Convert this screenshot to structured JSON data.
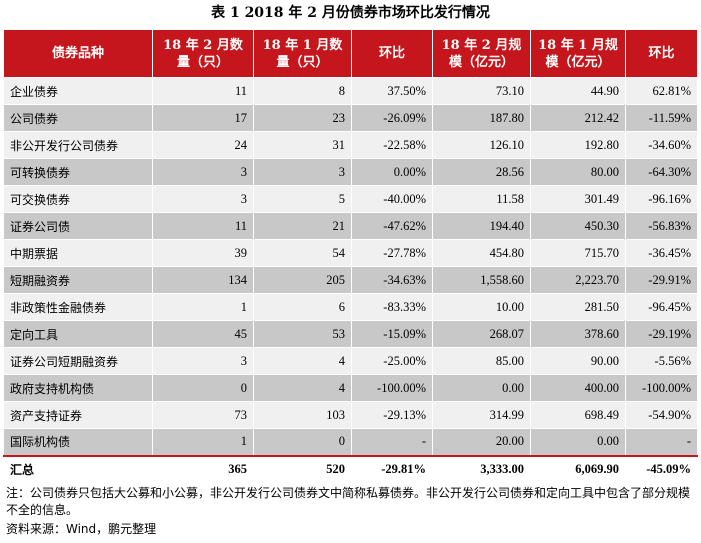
{
  "title": "表 1   2018 年 2 月份债券市场环比发行情况",
  "headers": [
    "债券品种",
    "18 年 2 月数量（只）",
    "18 年 1 月数量（只）",
    "环比",
    "18 年 2 月规模（亿元）",
    "18 年 1 月规模（亿元）",
    "环比"
  ],
  "rows": [
    [
      "企业债券",
      "11",
      "8",
      "37.50%",
      "73.10",
      "44.90",
      "62.81%"
    ],
    [
      "公司债券",
      "17",
      "23",
      "-26.09%",
      "187.80",
      "212.42",
      "-11.59%"
    ],
    [
      "非公开发行公司债券",
      "24",
      "31",
      "-22.58%",
      "126.10",
      "192.80",
      "-34.60%"
    ],
    [
      "可转换债券",
      "3",
      "3",
      "0.00%",
      "28.56",
      "80.00",
      "-64.30%"
    ],
    [
      "可交换债券",
      "3",
      "5",
      "-40.00%",
      "11.58",
      "301.49",
      "-96.16%"
    ],
    [
      "证券公司债",
      "11",
      "21",
      "-47.62%",
      "194.40",
      "450.30",
      "-56.83%"
    ],
    [
      "中期票据",
      "39",
      "54",
      "-27.78%",
      "454.80",
      "715.70",
      "-36.45%"
    ],
    [
      "短期融资券",
      "134",
      "205",
      "-34.63%",
      "1,558.60",
      "2,223.70",
      "-29.91%"
    ],
    [
      "非政策性金融债券",
      "1",
      "6",
      "-83.33%",
      "10.00",
      "281.50",
      "-96.45%"
    ],
    [
      "定向工具",
      "45",
      "53",
      "-15.09%",
      "268.07",
      "378.60",
      "-29.19%"
    ],
    [
      "证券公司短期融资券",
      "3",
      "4",
      "-25.00%",
      "85.00",
      "90.00",
      "-5.56%"
    ],
    [
      "政府支持机构债",
      "0",
      "4",
      "-100.00%",
      "0.00",
      "400.00",
      "-100.00%"
    ],
    [
      "资产支持证券",
      "73",
      "103",
      "-29.13%",
      "314.99",
      "698.49",
      "-54.90%"
    ],
    [
      "国际机构债",
      "1",
      "0",
      "-",
      "20.00",
      "0.00",
      "-"
    ]
  ],
  "total": [
    "汇总",
    "365",
    "520",
    "-29.81%",
    "3,333.00",
    "6,069.90",
    "-45.09%"
  ],
  "note": "注：公司债券只包括大公募和小公募，非公开发行公司债券文中简称私募债券。非公开发行公司债券和定向工具中包含了部分规模不全的信息。",
  "source": "资料来源：Wind，鹏元整理",
  "colors": {
    "header_bg": "#c4161c",
    "row_light": "#f0f0f0",
    "row_dark": "#c8c8c8"
  }
}
